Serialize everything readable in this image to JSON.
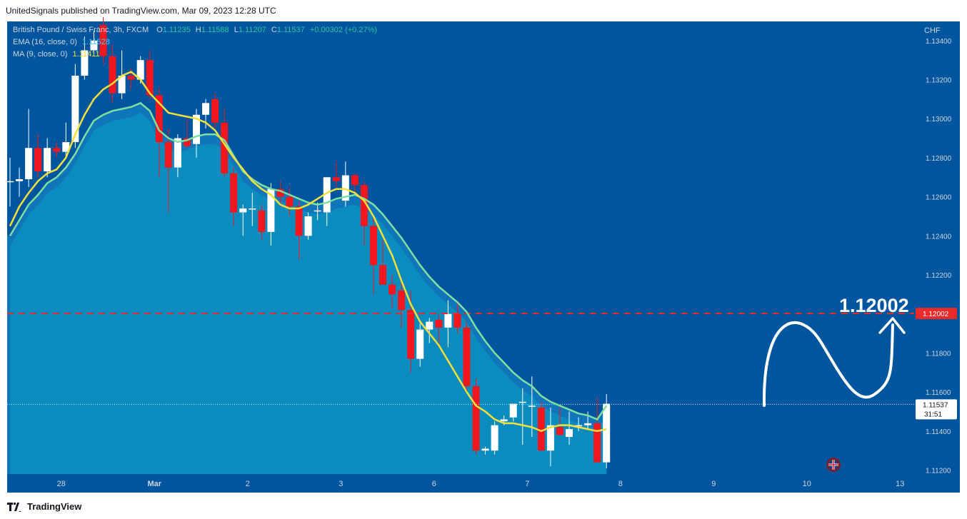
{
  "header": {
    "published": "UnitedSignals published on TradingView.com, Mar 09, 2023 12:28 UTC"
  },
  "legend": {
    "symbol": "British Pound / Swiss Franc, 3h, FXCM",
    "o_label": "O",
    "o_value": "1.11235",
    "h_label": "H",
    "h_value": "1.11588",
    "l_label": "L",
    "l_value": "1.11207",
    "c_label": "C",
    "c_value": "1.11537",
    "change": "+0.00302 (+0.27%)",
    "ema_label": "EMA (16, close, 0)",
    "ema_value": "1.11528",
    "ma_label": "MA (9, close, 0)",
    "ma_value": "1.11411"
  },
  "price_axis": {
    "currency": "CHF",
    "ticks": [
      "1.13400",
      "1.13200",
      "1.13000",
      "1.12800",
      "1.12600",
      "1.12400",
      "1.12200",
      "1.12002",
      "1.11800",
      "1.11600",
      "1.11537",
      "1.11400",
      "1.11200"
    ],
    "current_price": "1.11537",
    "countdown": "31:51",
    "target_tag": "1.12002"
  },
  "time_axis": {
    "labels": [
      "28",
      "Mar",
      "2",
      "3",
      "6",
      "7",
      "8",
      "9",
      "10",
      "13"
    ]
  },
  "annotation": {
    "target_label": "1.12002"
  },
  "footer": {
    "brand": "TradingView"
  },
  "colors": {
    "background": "#00569e",
    "bull": "#ffffff",
    "bear": "#f2161e",
    "ema": "#7ee0a0",
    "ma": "#f5e13a",
    "cloud": "#0a8fc0",
    "target": "#e82a2a"
  },
  "chart_data": {
    "type": "candlestick",
    "title": "British Pound / Swiss Franc, 3h, FXCM",
    "ylim": [
      1.1118,
      1.1352
    ],
    "y_ticks": [
      1.134,
      1.132,
      1.13,
      1.128,
      1.126,
      1.124,
      1.122,
      1.118,
      1.116,
      1.114,
      1.112
    ],
    "x_labels": [
      "28",
      "Mar",
      "2",
      "3",
      "6",
      "7",
      "8",
      "9",
      "10",
      "13"
    ],
    "x_label_index": [
      5.5,
      15.5,
      25.5,
      35.5,
      45.5,
      55.5,
      65.5,
      75.5,
      85.5,
      95.5
    ],
    "candles": [
      {
        "o": 1.1268,
        "h": 1.128,
        "l": 1.1255,
        "c": 1.1268
      },
      {
        "o": 1.1268,
        "h": 1.1275,
        "l": 1.126,
        "c": 1.1269
      },
      {
        "o": 1.1269,
        "h": 1.1305,
        "l": 1.1265,
        "c": 1.1285
      },
      {
        "o": 1.1285,
        "h": 1.1292,
        "l": 1.127,
        "c": 1.1273
      },
      {
        "o": 1.1273,
        "h": 1.129,
        "l": 1.127,
        "c": 1.1285
      },
      {
        "o": 1.1285,
        "h": 1.1288,
        "l": 1.128,
        "c": 1.1283
      },
      {
        "o": 1.1283,
        "h": 1.1298,
        "l": 1.128,
        "c": 1.1288
      },
      {
        "o": 1.1288,
        "h": 1.1328,
        "l": 1.1285,
        "c": 1.1322
      },
      {
        "o": 1.1322,
        "h": 1.1342,
        "l": 1.132,
        "c": 1.1335
      },
      {
        "o": 1.1335,
        "h": 1.1345,
        "l": 1.1332,
        "c": 1.134
      },
      {
        "o": 1.1348,
        "h": 1.1352,
        "l": 1.1328,
        "c": 1.1332
      },
      {
        "o": 1.1332,
        "h": 1.1338,
        "l": 1.1308,
        "c": 1.1313
      },
      {
        "o": 1.1313,
        "h": 1.1335,
        "l": 1.131,
        "c": 1.1322
      },
      {
        "o": 1.1322,
        "h": 1.1326,
        "l": 1.1315,
        "c": 1.132
      },
      {
        "o": 1.132,
        "h": 1.1332,
        "l": 1.1318,
        "c": 1.133
      },
      {
        "o": 1.133,
        "h": 1.1335,
        "l": 1.131,
        "c": 1.1312
      },
      {
        "o": 1.1312,
        "h": 1.1316,
        "l": 1.127,
        "c": 1.1288
      },
      {
        "o": 1.1288,
        "h": 1.1295,
        "l": 1.1252,
        "c": 1.1275
      },
      {
        "o": 1.1275,
        "h": 1.1292,
        "l": 1.127,
        "c": 1.129
      },
      {
        "o": 1.129,
        "h": 1.13,
        "l": 1.1285,
        "c": 1.1286
      },
      {
        "o": 1.1287,
        "h": 1.1305,
        "l": 1.128,
        "c": 1.1302
      },
      {
        "o": 1.1302,
        "h": 1.131,
        "l": 1.1295,
        "c": 1.1308
      },
      {
        "o": 1.131,
        "h": 1.1313,
        "l": 1.1295,
        "c": 1.1298
      },
      {
        "o": 1.1298,
        "h": 1.1305,
        "l": 1.127,
        "c": 1.1272
      },
      {
        "o": 1.1272,
        "h": 1.1275,
        "l": 1.1245,
        "c": 1.1252
      },
      {
        "o": 1.1252,
        "h": 1.1256,
        "l": 1.124,
        "c": 1.1254
      },
      {
        "o": 1.1254,
        "h": 1.1262,
        "l": 1.1245,
        "c": 1.1254
      },
      {
        "o": 1.1253,
        "h": 1.1256,
        "l": 1.1238,
        "c": 1.1242
      },
      {
        "o": 1.1242,
        "h": 1.1267,
        "l": 1.1235,
        "c": 1.1264
      },
      {
        "o": 1.1264,
        "h": 1.1268,
        "l": 1.1255,
        "c": 1.126
      },
      {
        "o": 1.126,
        "h": 1.1265,
        "l": 1.125,
        "c": 1.1255
      },
      {
        "o": 1.1255,
        "h": 1.1258,
        "l": 1.1228,
        "c": 1.124
      },
      {
        "o": 1.124,
        "h": 1.1252,
        "l": 1.1238,
        "c": 1.125
      },
      {
        "o": 1.1253,
        "h": 1.1257,
        "l": 1.1248,
        "c": 1.1253
      },
      {
        "o": 1.1252,
        "h": 1.127,
        "l": 1.1245,
        "c": 1.127
      },
      {
        "o": 1.127,
        "h": 1.1278,
        "l": 1.1265,
        "c": 1.1268
      },
      {
        "o": 1.1258,
        "h": 1.1278,
        "l": 1.1255,
        "c": 1.1271
      },
      {
        "o": 1.1271,
        "h": 1.1272,
        "l": 1.1262,
        "c": 1.1266
      },
      {
        "o": 1.1266,
        "h": 1.1268,
        "l": 1.1235,
        "c": 1.1245
      },
      {
        "o": 1.1245,
        "h": 1.125,
        "l": 1.121,
        "c": 1.1225
      },
      {
        "o": 1.1225,
        "h": 1.1238,
        "l": 1.1215,
        "c": 1.1215
      },
      {
        "o": 1.1215,
        "h": 1.122,
        "l": 1.1203,
        "c": 1.121
      },
      {
        "o": 1.1212,
        "h": 1.1218,
        "l": 1.1193,
        "c": 1.1202
      },
      {
        "o": 1.1202,
        "h": 1.1212,
        "l": 1.117,
        "c": 1.1177
      },
      {
        "o": 1.1177,
        "h": 1.1195,
        "l": 1.1173,
        "c": 1.1192
      },
      {
        "o": 1.1192,
        "h": 1.1198,
        "l": 1.1185,
        "c": 1.1196
      },
      {
        "o": 1.1197,
        "h": 1.12,
        "l": 1.1183,
        "c": 1.1193
      },
      {
        "o": 1.1193,
        "h": 1.1207,
        "l": 1.1183,
        "c": 1.12
      },
      {
        "o": 1.12,
        "h": 1.1206,
        "l": 1.119,
        "c": 1.1193
      },
      {
        "o": 1.1193,
        "h": 1.1196,
        "l": 1.116,
        "c": 1.1163
      },
      {
        "o": 1.1163,
        "h": 1.1167,
        "l": 1.1128,
        "c": 1.113
      },
      {
        "o": 1.113,
        "h": 1.1132,
        "l": 1.1128,
        "c": 1.1131
      },
      {
        "o": 1.113,
        "h": 1.1145,
        "l": 1.1128,
        "c": 1.1143
      },
      {
        "o": 1.1145,
        "h": 1.1148,
        "l": 1.1143,
        "c": 1.1146
      },
      {
        "o": 1.1147,
        "h": 1.1154,
        "l": 1.1145,
        "c": 1.1154
      },
      {
        "o": 1.1155,
        "h": 1.1162,
        "l": 1.1133,
        "c": 1.1155
      },
      {
        "o": 1.1153,
        "h": 1.1168,
        "l": 1.1137,
        "c": 1.1153
      },
      {
        "o": 1.1152,
        "h": 1.1155,
        "l": 1.113,
        "c": 1.113
      },
      {
        "o": 1.113,
        "h": 1.1152,
        "l": 1.1122,
        "c": 1.1143
      },
      {
        "o": 1.1142,
        "h": 1.1152,
        "l": 1.1138,
        "c": 1.1138
      },
      {
        "o": 1.1137,
        "h": 1.115,
        "l": 1.1133,
        "c": 1.1141
      },
      {
        "o": 1.1143,
        "h": 1.1147,
        "l": 1.114,
        "c": 1.1143
      },
      {
        "o": 1.1143,
        "h": 1.115,
        "l": 1.1141,
        "c": 1.1144
      },
      {
        "o": 1.1144,
        "h": 1.1157,
        "l": 1.1124,
        "c": 1.1124
      },
      {
        "o": 1.1124,
        "h": 1.1159,
        "l": 1.1121,
        "c": 1.1154
      }
    ],
    "ema_16": [
      1.124,
      1.1248,
      1.1256,
      1.1261,
      1.1267,
      1.127,
      1.1275,
      1.1282,
      1.1291,
      1.1299,
      1.1302,
      1.1304,
      1.1305,
      1.1306,
      1.1308,
      1.1304,
      1.1294,
      1.129,
      1.1288,
      1.1289,
      1.1291,
      1.1292,
      1.1292,
      1.1289,
      1.1281,
      1.1273,
      1.1269,
      1.1266,
      1.1264,
      1.1263,
      1.1261,
      1.1259,
      1.1257,
      1.1256,
      1.1257,
      1.1259,
      1.126,
      1.1261,
      1.1259,
      1.1256,
      1.1251,
      1.1245,
      1.1239,
      1.1232,
      1.1225,
      1.1219,
      1.1214,
      1.121,
      1.1206,
      1.1201,
      1.1193,
      1.1186,
      1.118,
      1.1175,
      1.117,
      1.1166,
      1.1163,
      1.1158,
      1.1155,
      1.1153,
      1.1151,
      1.1149,
      1.1148,
      1.1146,
      1.1153
    ],
    "ma_9": [
      1.1245,
      1.1255,
      1.1262,
      1.1268,
      1.1272,
      1.1274,
      1.128,
      1.1292,
      1.1302,
      1.131,
      1.1315,
      1.1318,
      1.1322,
      1.1324,
      1.132,
      1.1313,
      1.1308,
      1.1303,
      1.1302,
      1.1301,
      1.13,
      1.1298,
      1.1294,
      1.1287,
      1.128,
      1.1274,
      1.1268,
      1.1264,
      1.1261,
      1.1256,
      1.1254,
      1.1254,
      1.1256,
      1.1259,
      1.1262,
      1.1264,
      1.1264,
      1.1262,
      1.1258,
      1.125,
      1.124,
      1.123,
      1.1217,
      1.1205,
      1.1196,
      1.119,
      1.1184,
      1.1176,
      1.1168,
      1.116,
      1.1153,
      1.115,
      1.1146,
      1.1144,
      1.1144,
      1.1143,
      1.1142,
      1.114,
      1.1142,
      1.1143,
      1.1143,
      1.1142,
      1.1141,
      1.114,
      1.1141
    ],
    "target_level": 1.12002,
    "current_price": 1.11537
  }
}
